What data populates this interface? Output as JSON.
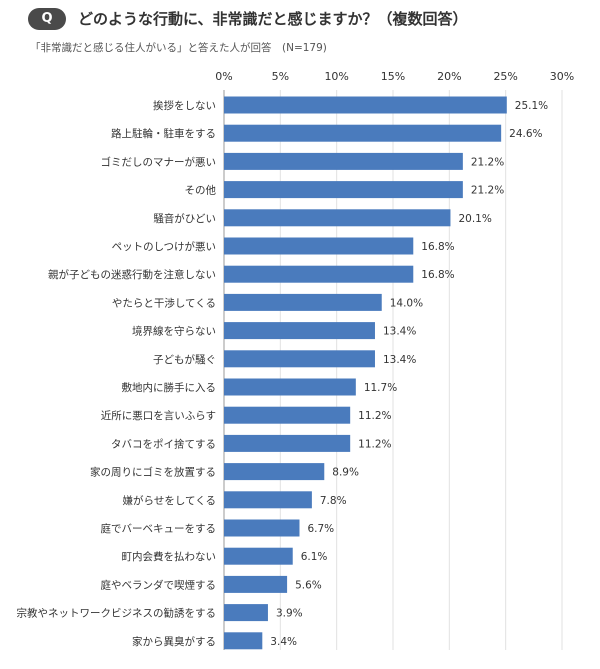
{
  "header": {
    "badge": "Q",
    "title": "どのような行動に、非常識だと感じますか？（複数回答）",
    "subtitle": "「非常識だと感じる住人がいる」と答えた人が回答　(N=179)"
  },
  "colors": {
    "bar": "#4a7bbd",
    "badge": "#4a4a4a"
  },
  "chart_data": {
    "type": "bar",
    "orientation": "horizontal",
    "title": "どのような行動に、非常識だと感じますか？（複数回答）",
    "xlim": [
      0,
      30
    ],
    "ticks": [
      "0%",
      "5%",
      "10%",
      "15%",
      "20%",
      "25%",
      "30%"
    ],
    "tick_values": [
      0,
      5,
      10,
      15,
      20,
      25,
      30
    ],
    "grid": true,
    "categories": [
      "挨拶をしない",
      "路上駐輪・駐車をする",
      "ゴミだしのマナーが悪い",
      "その他",
      "騒音がひどい",
      "ペットのしつけが悪い",
      "親が子どもの迷惑行動を注意しない",
      "やたらと干渉してくる",
      "境界線を守らない",
      "子どもが騒ぐ",
      "敷地内に勝手に入る",
      "近所に悪口を言いふらす",
      "タバコをポイ捨てする",
      "家の周りにゴミを放置する",
      "嫌がらせをしてくる",
      "庭でバーベキューをする",
      "町内会費を払わない",
      "庭やベランダで喫煙する",
      "宗教やネットワークビジネスの勧誘をする",
      "家から異臭がする"
    ],
    "values": [
      25.1,
      24.6,
      21.2,
      21.2,
      20.1,
      16.8,
      16.8,
      14.0,
      13.4,
      13.4,
      11.7,
      11.2,
      11.2,
      8.9,
      7.8,
      6.7,
      6.1,
      5.6,
      3.9,
      3.4
    ],
    "value_labels": [
      "25.1%",
      "24.6%",
      "21.2%",
      "21.2%",
      "20.1%",
      "16.8%",
      "16.8%",
      "14.0%",
      "13.4%",
      "13.4%",
      "11.7%",
      "11.2%",
      "11.2%",
      "8.9%",
      "7.8%",
      "6.7%",
      "6.1%",
      "5.6%",
      "3.9%",
      "3.4%"
    ]
  }
}
